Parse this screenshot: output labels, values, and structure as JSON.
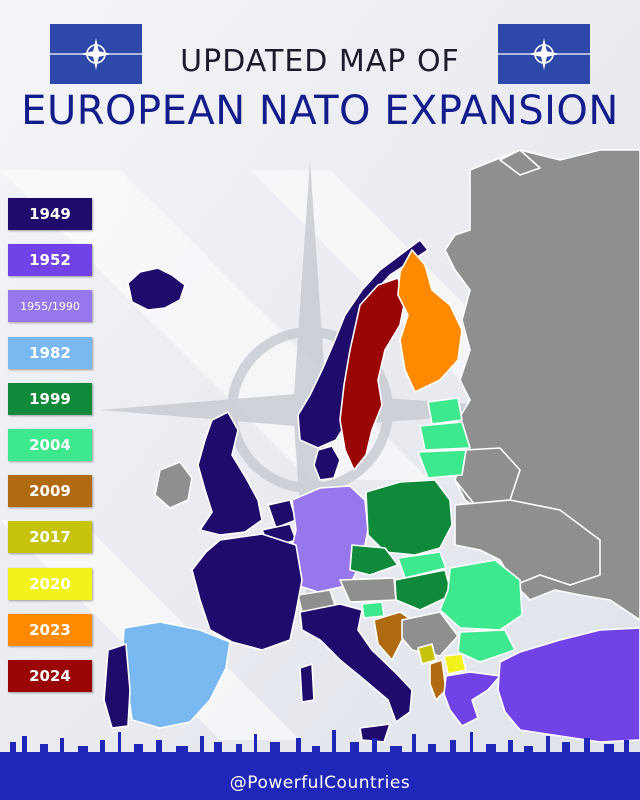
{
  "header": {
    "line1": "UPDATED MAP OF",
    "line2": "EUROPEAN NATO EXPANSION"
  },
  "flags": {
    "left": "nato-flag-icon",
    "right": "nato-flag-icon",
    "color": "#2d48a8"
  },
  "legend": {
    "items": [
      {
        "label": "1949",
        "color": "#1f0b6b"
      },
      {
        "label": "1952",
        "color": "#7142e8"
      },
      {
        "label": "1955/1990",
        "color": "#9678ec"
      },
      {
        "label": "1982",
        "color": "#7ab8f2"
      },
      {
        "label": "1999",
        "color": "#0f8a3a"
      },
      {
        "label": "2004",
        "color": "#3ee88e"
      },
      {
        "label": "2009",
        "color": "#b06a10"
      },
      {
        "label": "2017",
        "color": "#c6c40a"
      },
      {
        "label": "2020",
        "color": "#f2f21c"
      },
      {
        "label": "2023",
        "color": "#ff8a00"
      },
      {
        "label": "2024",
        "color": "#9a0606"
      }
    ]
  },
  "map": {
    "non_member_color": "#8f8f8f",
    "compass_icon": "nato-compass-icon"
  },
  "footer": {
    "handle": "@PowerfulCountries",
    "skyline_icon": "city-skyline-icon"
  }
}
